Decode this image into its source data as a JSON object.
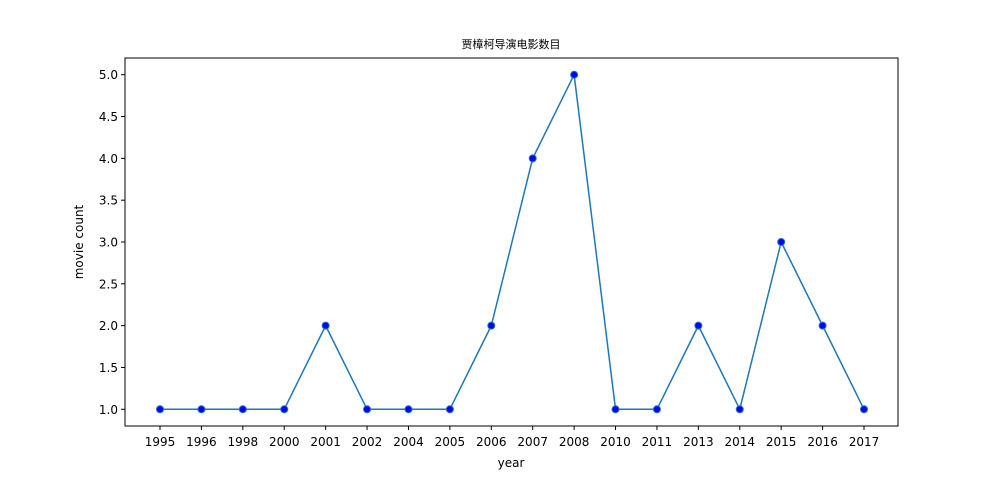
{
  "chart_data": {
    "type": "line",
    "title": "贾樟柯导演电影数目",
    "xlabel": "year",
    "ylabel": "movie count",
    "categories": [
      "1995",
      "1996",
      "1998",
      "2000",
      "2001",
      "2002",
      "2004",
      "2005",
      "2006",
      "2007",
      "2008",
      "2010",
      "2011",
      "2013",
      "2014",
      "2015",
      "2016",
      "2017"
    ],
    "series": [
      {
        "values": [
          1,
          1,
          1,
          1,
          2,
          1,
          1,
          1,
          2,
          4,
          5,
          1,
          1,
          2,
          1,
          3,
          2,
          1
        ],
        "color": "#1f77b4",
        "marker_color": "#0000ff"
      }
    ],
    "ylim": [
      0.8,
      5.2
    ],
    "yticks": [
      "1.0",
      "1.5",
      "2.0",
      "2.5",
      "3.0",
      "3.5",
      "4.0",
      "4.5",
      "5.0"
    ],
    "grid": false,
    "legend": "none"
  }
}
